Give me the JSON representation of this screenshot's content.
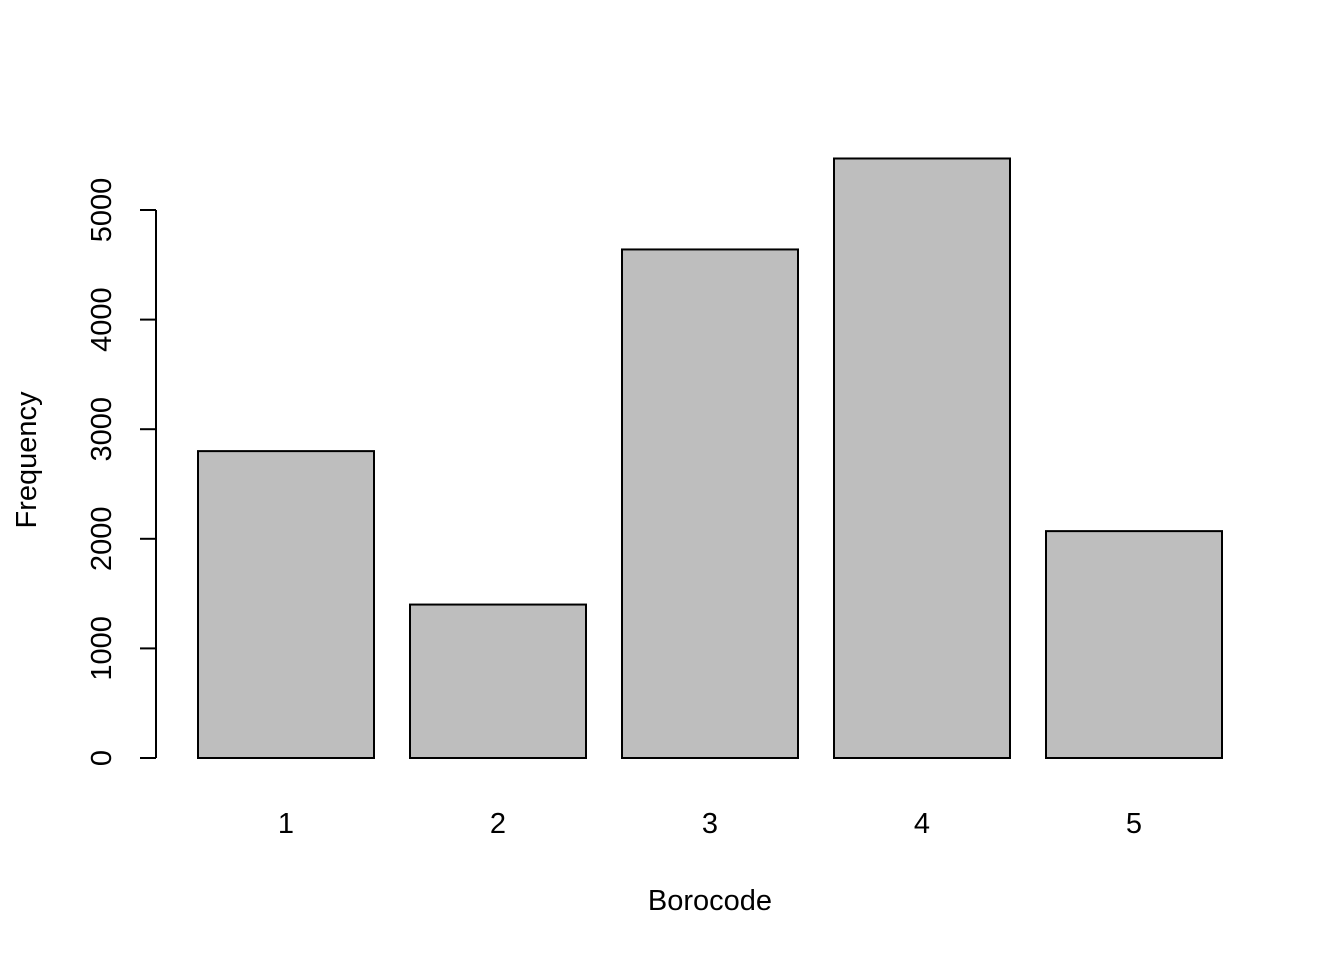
{
  "chart_data": {
    "type": "bar",
    "title": "",
    "xlabel": "Borocode",
    "ylabel": "Frequency",
    "categories": [
      "1",
      "2",
      "3",
      "4",
      "5"
    ],
    "values": [
      2800,
      1400,
      4640,
      5470,
      2070
    ],
    "ylim": [
      0,
      5500
    ],
    "yticks": [
      0,
      1000,
      2000,
      3000,
      4000,
      5000
    ],
    "grid": false,
    "legend": "none",
    "colors": {
      "bar_fill": "#bebebe",
      "bar_stroke": "#000000",
      "background": "#ffffff"
    }
  }
}
